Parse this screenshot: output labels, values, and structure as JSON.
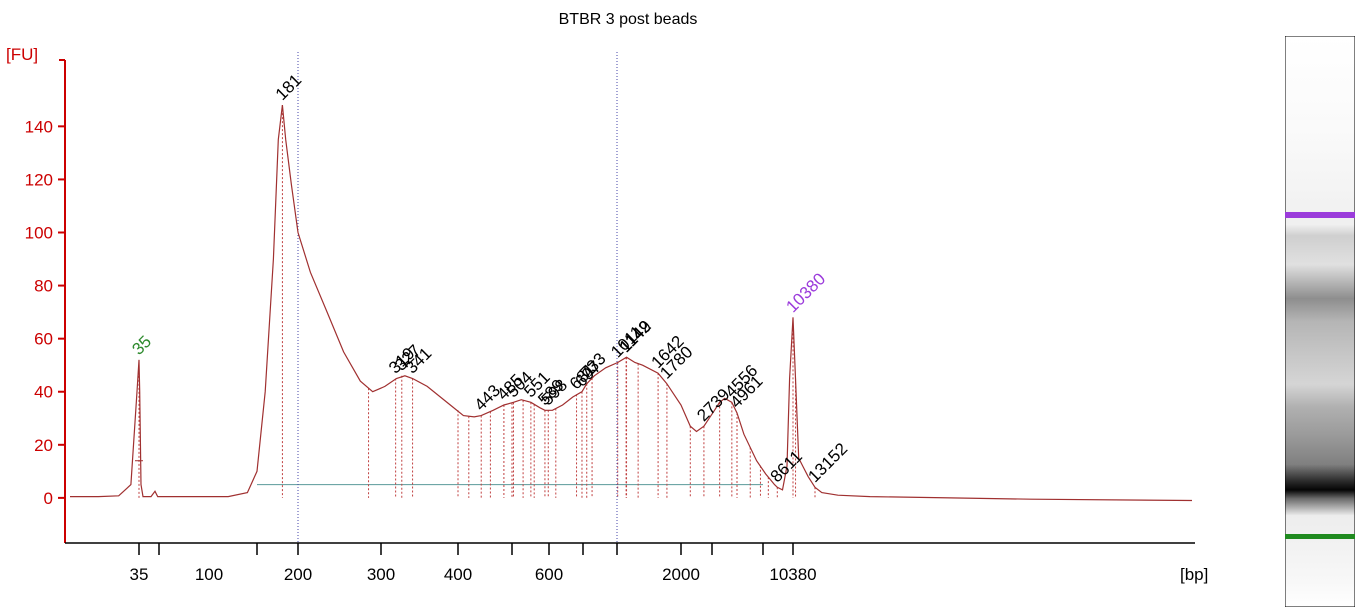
{
  "chart_data": {
    "type": "line",
    "title": "BTBR 3 post beads",
    "y_unit_label": "[FU]",
    "x_unit_label": "[bp]",
    "ylim": [
      -17,
      165
    ],
    "y_ticks": [
      0,
      20,
      40,
      60,
      80,
      100,
      120,
      140
    ],
    "y_tick_labels": [
      "0",
      "20",
      "40",
      "60",
      "80",
      "100",
      "120",
      "140"
    ],
    "x_tick_labels": [
      {
        "label": "35",
        "pos": 35
      },
      {
        "label": "100",
        "pos": 100
      },
      {
        "label": "200",
        "pos": 200
      },
      {
        "label": "300",
        "pos": 300
      },
      {
        "label": "400",
        "pos": 400
      },
      {
        "label": "600",
        "pos": 600
      },
      {
        "label": "2000",
        "pos": 2000
      },
      {
        "label": "10380",
        "pos": 10380
      }
    ],
    "x_tick_marks": [
      35,
      50,
      150,
      200,
      300,
      400,
      500,
      600,
      700,
      1000,
      2000,
      3000,
      7000,
      10380
    ],
    "x_scale_note": "ladder-based migration axis (non-linear bp)",
    "trace": [
      [
        18,
        0.5
      ],
      [
        25,
        0.5
      ],
      [
        30,
        0.8
      ],
      [
        33,
        5
      ],
      [
        34.5,
        40
      ],
      [
        35,
        52
      ],
      [
        35.5,
        40
      ],
      [
        36.5,
        5
      ],
      [
        38,
        0.5
      ],
      [
        44,
        0.5
      ],
      [
        47,
        2.5
      ],
      [
        49,
        0.5
      ],
      [
        60,
        0.5
      ],
      [
        90,
        0.5
      ],
      [
        120,
        0.5
      ],
      [
        140,
        2
      ],
      [
        150,
        10
      ],
      [
        160,
        40
      ],
      [
        170,
        90
      ],
      [
        176,
        135
      ],
      [
        181,
        148
      ],
      [
        185,
        135
      ],
      [
        192,
        118
      ],
      [
        200,
        100
      ],
      [
        215,
        85
      ],
      [
        235,
        70
      ],
      [
        255,
        55
      ],
      [
        275,
        44
      ],
      [
        290,
        40
      ],
      [
        305,
        42
      ],
      [
        320,
        45
      ],
      [
        331,
        46
      ],
      [
        341,
        45
      ],
      [
        360,
        42
      ],
      [
        390,
        35
      ],
      [
        410,
        31
      ],
      [
        430,
        30.5
      ],
      [
        443,
        31
      ],
      [
        465,
        33
      ],
      [
        485,
        35
      ],
      [
        504,
        36
      ],
      [
        525,
        37
      ],
      [
        551,
        36
      ],
      [
        575,
        34
      ],
      [
        589,
        33
      ],
      [
        610,
        33
      ],
      [
        640,
        35
      ],
      [
        670,
        38
      ],
      [
        697,
        40
      ],
      [
        733,
        43
      ],
      [
        800,
        46
      ],
      [
        900,
        49
      ],
      [
        1011,
        51
      ],
      [
        1149,
        53
      ],
      [
        1280,
        51
      ],
      [
        1400,
        50
      ],
      [
        1642,
        47
      ],
      [
        1780,
        43
      ],
      [
        2000,
        35
      ],
      [
        2300,
        27
      ],
      [
        2500,
        25
      ],
      [
        2739,
        27
      ],
      [
        3200,
        33
      ],
      [
        3600,
        36
      ],
      [
        4000,
        37.5
      ],
      [
        4556,
        36
      ],
      [
        4961,
        32
      ],
      [
        5500,
        24
      ],
      [
        6500,
        14
      ],
      [
        7300,
        9
      ],
      [
        7800,
        7
      ],
      [
        8300,
        5
      ],
      [
        8611,
        4
      ],
      [
        9200,
        3
      ],
      [
        9700,
        12
      ],
      [
        10000,
        45
      ],
      [
        10380,
        68
      ],
      [
        10700,
        45
      ],
      [
        11100,
        15
      ],
      [
        11600,
        12
      ],
      [
        12300,
        8
      ],
      [
        13152,
        4
      ],
      [
        14000,
        2
      ],
      [
        16000,
        1
      ],
      [
        20000,
        0.5
      ],
      [
        30000,
        0
      ],
      [
        40000,
        -0.5
      ],
      [
        60000,
        -1
      ]
    ],
    "baseline_fu": 5,
    "peaks": [
      {
        "label": "35",
        "x": 35,
        "y": 52,
        "color": "#2d8a2d"
      },
      {
        "label": "181",
        "x": 181,
        "y": 148,
        "color": "#000000"
      },
      {
        "label": "319",
        "x": 319,
        "y": 45,
        "color": "#000000"
      },
      {
        "label": "327",
        "x": 327,
        "y": 46,
        "color": "#000000"
      },
      {
        "label": "341",
        "x": 341,
        "y": 45,
        "color": "#000000"
      },
      {
        "label": "443",
        "x": 443,
        "y": 31,
        "color": "#000000"
      },
      {
        "label": "485",
        "x": 485,
        "y": 35,
        "color": "#000000"
      },
      {
        "label": "504",
        "x": 504,
        "y": 36,
        "color": "#000000"
      },
      {
        "label": "551",
        "x": 551,
        "y": 36,
        "color": "#000000"
      },
      {
        "label": "589",
        "x": 589,
        "y": 33,
        "color": "#000000"
      },
      {
        "label": "598",
        "x": 598,
        "y": 33,
        "color": "#000000"
      },
      {
        "label": "681",
        "x": 681,
        "y": 39,
        "color": "#000000"
      },
      {
        "label": "697",
        "x": 697,
        "y": 40,
        "color": "#000000"
      },
      {
        "label": "733",
        "x": 733,
        "y": 43,
        "color": "#000000"
      },
      {
        "label": "1011",
        "x": 1011,
        "y": 51,
        "color": "#000000"
      },
      {
        "label": "1149",
        "x": 1149,
        "y": 53,
        "color": "#000000"
      },
      {
        "label": "1142",
        "x": 1142,
        "y": 53,
        "color": "#000000"
      },
      {
        "label": "1642",
        "x": 1642,
        "y": 47,
        "color": "#000000"
      },
      {
        "label": "1780",
        "x": 1780,
        "y": 43,
        "color": "#000000"
      },
      {
        "label": "2739",
        "x": 2739,
        "y": 27,
        "color": "#000000"
      },
      {
        "label": "4556",
        "x": 4556,
        "y": 36,
        "color": "#000000"
      },
      {
        "label": "4961",
        "x": 4961,
        "y": 32,
        "color": "#000000"
      },
      {
        "label": "8611",
        "x": 8611,
        "y": 4,
        "color": "#000000"
      },
      {
        "label": "10380",
        "x": 10380,
        "y": 68,
        "color": "#9b3bdb"
      },
      {
        "label": "13152",
        "x": 13152,
        "y": 4,
        "color": "#000000"
      }
    ],
    "region_bounds": [
      285,
      400,
      420,
      460,
      500,
      530,
      560,
      620,
      780,
      1330,
      2300,
      3600,
      6000,
      6800,
      7600,
      10700
    ],
    "grid": false,
    "legend": "none",
    "colors": {
      "axis": "#cc0000",
      "trace": "#a03030",
      "baseline": "#5a9a9a",
      "marker_lines": "#4444aa",
      "marker_low": "#2d8a2d",
      "marker_high": "#9b3bdb"
    },
    "marker_vlines": [
      200,
      1000
    ]
  },
  "gel": {
    "upper_marker_color": "#9b3bdb",
    "lower_marker_color": "#1f8a1f"
  }
}
